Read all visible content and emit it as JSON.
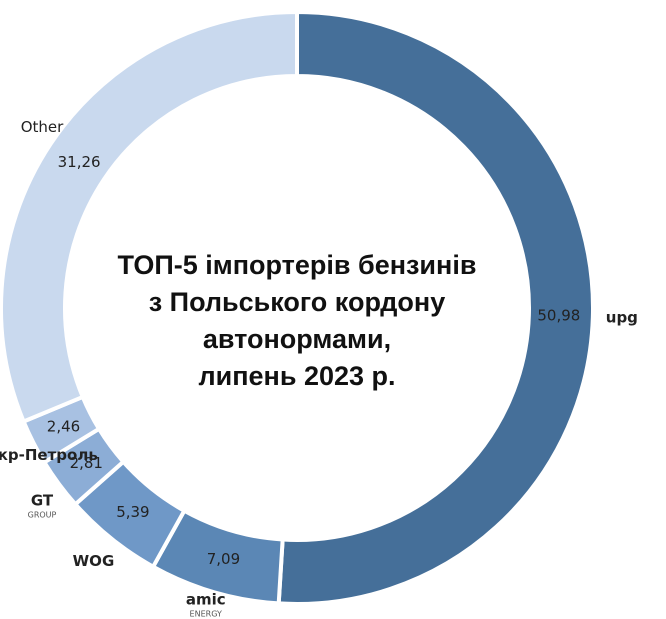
{
  "chart_data": {
    "type": "donut",
    "title": [
      "ТОП-5 імпортерів бензинів",
      "з Польського кордону",
      "автонормами,",
      "липень 2023 р."
    ],
    "categories": [
      "upg",
      "amic",
      "WOG",
      "GT",
      "Укр-Петроль",
      "Other"
    ],
    "category_sublabels": [
      null,
      "ENERGY",
      null,
      "GROUP",
      null,
      null
    ],
    "values": [
      50.98,
      7.09,
      5.39,
      2.81,
      2.46,
      31.26
    ],
    "value_labels": [
      "50,98",
      "7,09",
      "5,39",
      "2,81",
      "2,46",
      "31,26"
    ],
    "colors": [
      "#456f99",
      "#5b87b5",
      "#6f98c7",
      "#8cadd6",
      "#a8c1e2",
      "#c9d9ee"
    ]
  }
}
